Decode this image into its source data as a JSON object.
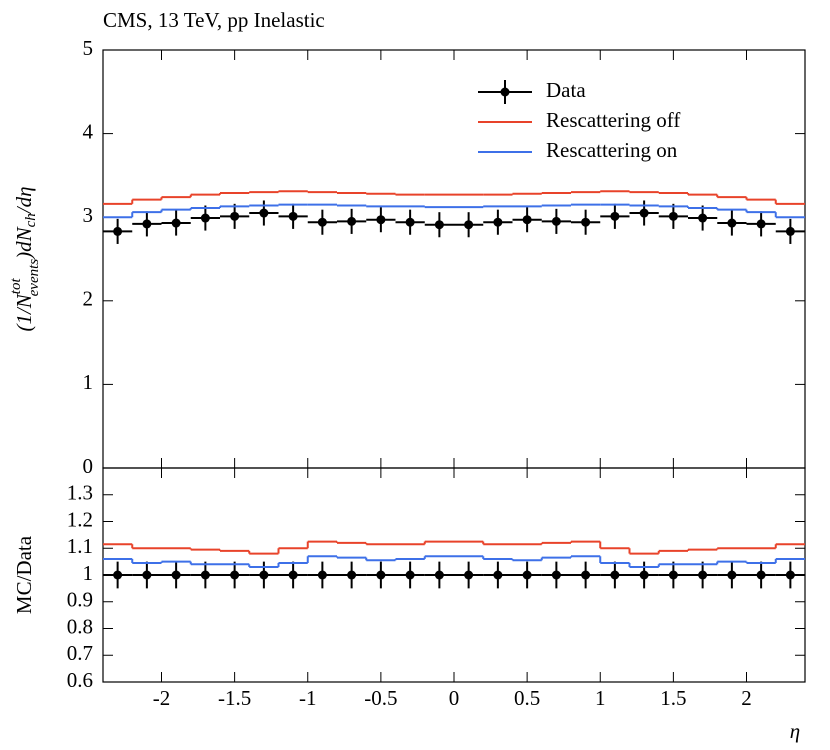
{
  "chart_data": [
    {
      "type": "histogram",
      "title": "CMS, 13 TeV, pp Inelastic",
      "ylabel_parts": [
        "(1/N",
        "tot",
        "events",
        ")dN",
        "ch",
        "/dη"
      ],
      "bins": [
        -2.4,
        -2.2,
        -2.0,
        -1.8,
        -1.6,
        -1.4,
        -1.2,
        -1.0,
        -0.8,
        -0.6,
        -0.4,
        -0.2,
        0,
        0.2,
        0.4,
        0.6,
        0.8,
        1.0,
        1.2,
        1.4,
        1.6,
        1.8,
        2.0,
        2.2,
        2.4
      ],
      "xlim": [
        -2.4,
        2.4
      ],
      "ylim": [
        0,
        5
      ],
      "yticks": [
        0,
        1,
        2,
        3,
        4,
        5
      ],
      "legend": "upper right",
      "series": [
        {
          "name": "Data",
          "color": "#000000",
          "values": [
            2.83,
            2.92,
            2.93,
            2.99,
            3.01,
            3.05,
            3.01,
            2.94,
            2.95,
            2.97,
            2.94,
            2.91,
            2.91,
            2.94,
            2.97,
            2.95,
            2.94,
            3.01,
            3.05,
            3.01,
            2.99,
            2.93,
            2.92,
            2.83
          ],
          "errors": [
            0.15,
            0.15,
            0.15,
            0.15,
            0.15,
            0.15,
            0.15,
            0.15,
            0.15,
            0.15,
            0.15,
            0.15,
            0.15,
            0.15,
            0.15,
            0.15,
            0.15,
            0.15,
            0.15,
            0.15,
            0.15,
            0.15,
            0.15,
            0.15
          ]
        },
        {
          "name": "Rescattering off",
          "color": "#e8432a",
          "values": [
            3.16,
            3.21,
            3.24,
            3.27,
            3.29,
            3.3,
            3.31,
            3.3,
            3.29,
            3.28,
            3.27,
            3.27,
            3.27,
            3.27,
            3.28,
            3.29,
            3.3,
            3.31,
            3.3,
            3.29,
            3.27,
            3.24,
            3.21,
            3.16
          ]
        },
        {
          "name": "Rescattering on",
          "color": "#3e70e8",
          "values": [
            3.0,
            3.06,
            3.09,
            3.11,
            3.13,
            3.14,
            3.15,
            3.15,
            3.14,
            3.13,
            3.13,
            3.12,
            3.12,
            3.13,
            3.13,
            3.14,
            3.15,
            3.15,
            3.14,
            3.13,
            3.11,
            3.09,
            3.06,
            3.0
          ]
        }
      ]
    },
    {
      "type": "histogram",
      "ylabel": "MC/Data",
      "xlabel": "η",
      "bins": [
        -2.4,
        -2.2,
        -2.0,
        -1.8,
        -1.6,
        -1.4,
        -1.2,
        -1.0,
        -0.8,
        -0.6,
        -0.4,
        -0.2,
        0,
        0.2,
        0.4,
        0.6,
        0.8,
        1.0,
        1.2,
        1.4,
        1.6,
        1.8,
        2.0,
        2.2,
        2.4
      ],
      "xlim": [
        -2.4,
        2.4
      ],
      "ylim": [
        0.6,
        1.4
      ],
      "xticks": [
        -2,
        -1.5,
        -1,
        -0.5,
        0,
        0.5,
        1,
        1.5,
        2
      ],
      "yticks": [
        0.6,
        0.7,
        0.8,
        0.9,
        1,
        1.1,
        1.2,
        1.3
      ],
      "series": [
        {
          "color": "#000000",
          "values": [
            1,
            1,
            1,
            1,
            1,
            1,
            1,
            1,
            1,
            1,
            1,
            1,
            1,
            1,
            1,
            1,
            1,
            1,
            1,
            1,
            1,
            1,
            1,
            1
          ],
          "errors": [
            0.05,
            0.05,
            0.05,
            0.05,
            0.05,
            0.05,
            0.05,
            0.05,
            0.05,
            0.05,
            0.05,
            0.05,
            0.05,
            0.05,
            0.05,
            0.05,
            0.05,
            0.05,
            0.05,
            0.05,
            0.05,
            0.05,
            0.05,
            0.05
          ]
        },
        {
          "color": "#e8432a",
          "values": [
            1.115,
            1.1,
            1.1,
            1.095,
            1.09,
            1.08,
            1.1,
            1.125,
            1.12,
            1.115,
            1.115,
            1.125,
            1.125,
            1.115,
            1.115,
            1.12,
            1.125,
            1.1,
            1.08,
            1.09,
            1.095,
            1.1,
            1.1,
            1.115
          ]
        },
        {
          "color": "#3e70e8",
          "values": [
            1.06,
            1.045,
            1.05,
            1.04,
            1.04,
            1.03,
            1.045,
            1.07,
            1.065,
            1.055,
            1.06,
            1.07,
            1.07,
            1.06,
            1.055,
            1.065,
            1.07,
            1.045,
            1.03,
            1.04,
            1.04,
            1.05,
            1.045,
            1.06
          ]
        }
      ]
    }
  ]
}
